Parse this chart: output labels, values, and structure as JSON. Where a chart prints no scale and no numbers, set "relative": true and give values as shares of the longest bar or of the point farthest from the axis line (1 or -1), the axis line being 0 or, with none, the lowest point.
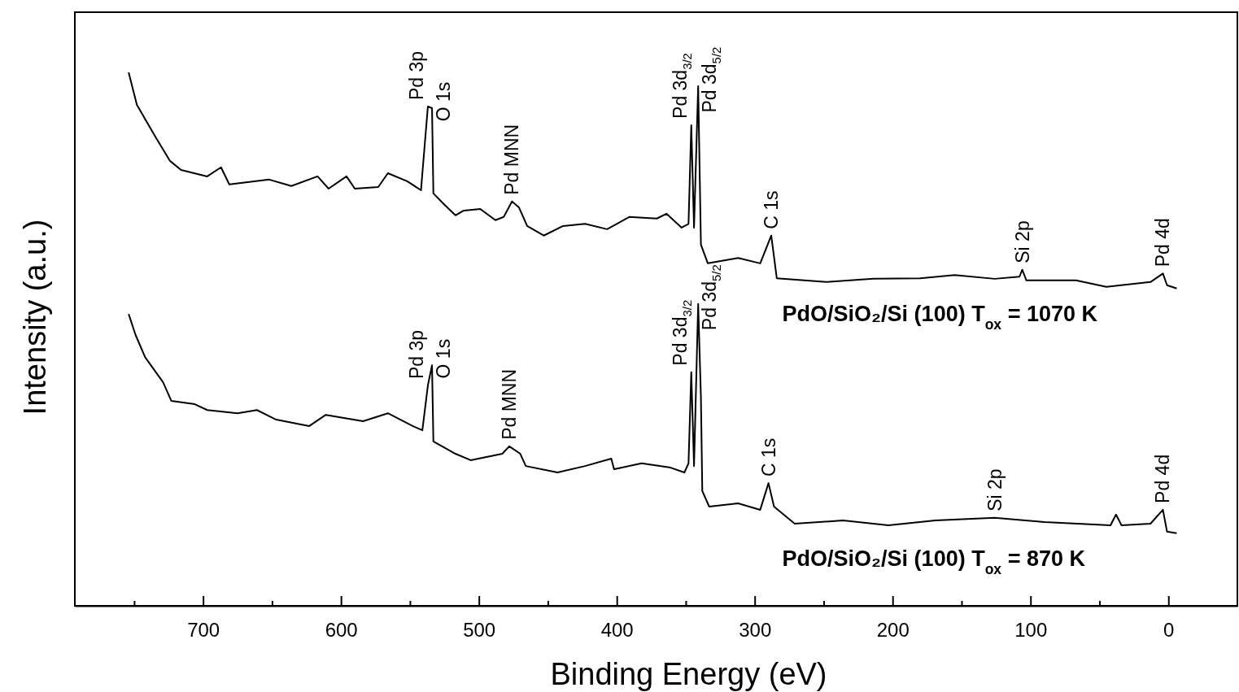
{
  "chart_data": {
    "type": "line",
    "relative": true,
    "xlabel": "Binding Energy (eV)",
    "ylabel": "Intensity (a.u.)",
    "xlim": [
      793,
      -50
    ],
    "xticks": [
      {
        "value": 750,
        "label": null
      },
      700,
      {
        "value": 650,
        "label": null
      },
      600,
      {
        "value": 550,
        "label": null
      },
      500,
      {
        "value": 450,
        "label": null
      },
      400,
      {
        "value": 350,
        "label": null
      },
      300,
      {
        "value": 250,
        "label": null
      },
      200,
      {
        "value": 150,
        "label": null
      },
      100,
      {
        "value": 50,
        "label": null
      },
      0
    ],
    "grid": false,
    "legend": false,
    "marker": "none",
    "line_style": "solid",
    "series": [
      {
        "name": "PdO/SiO₂/Si (100) T$_{ox}$ = 1070 K",
        "color": "#000000",
        "x": [
          754,
          748,
          735,
          724,
          716,
          697,
          687,
          681,
          652,
          636,
          617,
          609,
          596,
          590,
          573,
          566,
          552,
          542,
          537,
          534,
          533,
          525,
          517,
          511,
          499,
          488,
          482,
          476,
          471,
          465,
          453,
          439,
          423,
          407,
          391,
          371,
          364,
          353,
          348,
          346,
          344,
          341,
          339,
          334,
          312,
          296,
          288,
          284,
          248,
          214,
          180,
          155,
          126,
          108,
          106,
          103,
          67,
          45,
          13,
          4,
          1,
          -6
        ],
        "values": [
          1,
          0.939,
          0.881,
          0.834,
          0.817,
          0.805,
          0.822,
          0.79,
          0.799,
          0.787,
          0.805,
          0.782,
          0.805,
          0.782,
          0.785,
          0.811,
          0.796,
          0.779,
          0.936,
          0.933,
          0.773,
          0.752,
          0.732,
          0.741,
          0.744,
          0.723,
          0.729,
          0.758,
          0.747,
          0.712,
          0.694,
          0.712,
          0.716,
          0.706,
          0.729,
          0.726,
          0.735,
          0.709,
          0.716,
          0.901,
          0.709,
          0.974,
          0.677,
          0.642,
          0.652,
          0.642,
          0.694,
          0.614,
          0.607,
          0.613,
          0.614,
          0.62,
          0.613,
          0.617,
          0.63,
          0.61,
          0.61,
          0.598,
          0.607,
          0.623,
          0.601,
          0.595
        ]
      },
      {
        "name": "PdO/SiO₂/Si (100) T$_{ox}$ = 870 K",
        "color": "#000000",
        "x": [
          754,
          749,
          742,
          729,
          723,
          706,
          697,
          675,
          661,
          647,
          623,
          611,
          584,
          566,
          548,
          541,
          537,
          534,
          533,
          517,
          506,
          483,
          478,
          470,
          466,
          443,
          423,
          404,
          402,
          382,
          361,
          351,
          348,
          346,
          344,
          341,
          339,
          338,
          333,
          312,
          296,
          290,
          286,
          271,
          236,
          203,
          169,
          126,
          90,
          42,
          38,
          34,
          13,
          4,
          1,
          -6
        ],
        "values": [
          0.547,
          0.508,
          0.466,
          0.419,
          0.384,
          0.378,
          0.367,
          0.361,
          0.367,
          0.349,
          0.337,
          0.358,
          0.346,
          0.361,
          0.337,
          0.329,
          0.413,
          0.451,
          0.308,
          0.285,
          0.273,
          0.285,
          0.299,
          0.285,
          0.262,
          0.25,
          0.262,
          0.276,
          0.256,
          0.267,
          0.259,
          0.25,
          0.267,
          0.438,
          0.262,
          0.566,
          0.39,
          0.215,
          0.186,
          0.192,
          0.18,
          0.23,
          0.186,
          0.154,
          0.16,
          0.151,
          0.16,
          0.165,
          0.157,
          0.151,
          0.171,
          0.151,
          0.154,
          0.18,
          0.139,
          0.136
        ]
      }
    ],
    "annotations": [
      {
        "text": "Pd 3p",
        "x": 537,
        "y": 0.936
      },
      {
        "text": "O 1s",
        "x": 534,
        "y": 0.933
      },
      {
        "text": "Pd MNN",
        "x": 476,
        "y": 0.758
      },
      {
        "text": "Pd 3d$_{3/2}$",
        "x": 346,
        "y": 0.901
      },
      {
        "text": "Pd 3d$_{5/2}$",
        "x": 341,
        "y": 0.974
      },
      {
        "text": "C 1s",
        "x": 288,
        "y": 0.694
      },
      {
        "text": "Si 2p",
        "x": 106,
        "y": 0.63
      },
      {
        "text": "Pd 4d",
        "x": 4,
        "y": 0.623
      },
      {
        "text": "Pd 3p",
        "x": 537,
        "y": 0.413
      },
      {
        "text": "O 1s",
        "x": 534,
        "y": 0.451
      },
      {
        "text": "Pd MNN",
        "x": 478,
        "y": 0.299
      },
      {
        "text": "Pd 3d$_{3/2}$",
        "x": 346,
        "y": 0.438
      },
      {
        "text": "Pd 3d$_{5/2}$",
        "x": 341,
        "y": 0.566
      },
      {
        "text": "C 1s",
        "x": 290,
        "y": 0.23
      },
      {
        "text": "Si 2p",
        "x": 126,
        "y": 0.165
      },
      {
        "text": "Pd 4d",
        "x": 4,
        "y": 0.18
      }
    ]
  }
}
